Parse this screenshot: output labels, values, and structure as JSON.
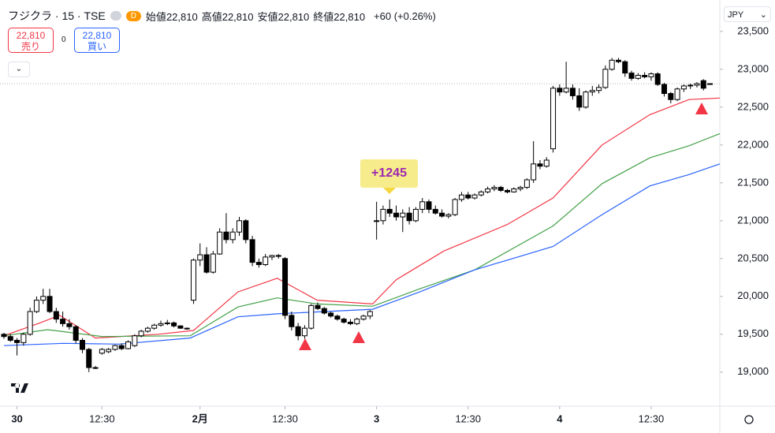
{
  "header": {
    "symbol": "フジクラ · 15 · TSE",
    "badge": "D",
    "ohlc_legend": [
      {
        "label": "始値",
        "value": "22,810"
      },
      {
        "label": "高値",
        "value": "22,810"
      },
      {
        "label": "安値",
        "value": "22,810"
      },
      {
        "label": "終値",
        "value": "22,810"
      }
    ],
    "change": "+60 (+0.26%)",
    "currency": "JPY"
  },
  "trade": {
    "sell": {
      "price": "22,810",
      "label": "売り"
    },
    "spread": "0",
    "buy": {
      "price": "22,810",
      "label": "買い"
    }
  },
  "chart_data": {
    "type": "candlestick",
    "annotation": "+1245",
    "price_line": 22810,
    "xlim": [
      -0.6,
      109.5
    ],
    "ylim": [
      18550,
      23915
    ],
    "xticks": [
      {
        "value": 2,
        "label": "30"
      },
      {
        "value": 15,
        "label": "12:30"
      },
      {
        "value": 30,
        "label": "2月"
      },
      {
        "value": 43,
        "label": "12:30"
      },
      {
        "value": 57,
        "label": "3"
      },
      {
        "value": 71,
        "label": "12:30"
      },
      {
        "value": 85,
        "label": "4"
      },
      {
        "value": 99,
        "label": "12:30"
      }
    ],
    "yticks": [
      {
        "value": 19000,
        "label": "19,000"
      },
      {
        "value": 19500,
        "label": "19,500"
      },
      {
        "value": 20000,
        "label": "20,000"
      },
      {
        "value": 20500,
        "label": "20,500"
      },
      {
        "value": 21000,
        "label": "21,000"
      },
      {
        "value": 21500,
        "label": "21,500"
      },
      {
        "value": 22000,
        "label": "22,000"
      },
      {
        "value": 22500,
        "label": "22,500"
      },
      {
        "value": 23000,
        "label": "23,000"
      },
      {
        "value": 23500,
        "label": "23,500"
      }
    ],
    "ohlc": [
      [
        19500,
        19520,
        19440,
        19470
      ],
      [
        19470,
        19500,
        19400,
        19420
      ],
      [
        19420,
        19450,
        19220,
        19390
      ],
      [
        19390,
        19520,
        19350,
        19500
      ],
      [
        19500,
        19850,
        19480,
        19800
      ],
      [
        19800,
        20000,
        19780,
        19950
      ],
      [
        19950,
        20100,
        19900,
        20000
      ],
      [
        20000,
        20100,
        19780,
        19800
      ],
      [
        19800,
        19850,
        19650,
        19700
      ],
      [
        19700,
        19800,
        19600,
        19640
      ],
      [
        19640,
        19700,
        19560,
        19600
      ],
      [
        19600,
        19620,
        19380,
        19420
      ],
      [
        19420,
        19450,
        19250,
        19300
      ],
      [
        19300,
        19320,
        19000,
        19060
      ],
      [
        19060,
        19080,
        19040,
        19060
      ],
      [
        19250,
        19320,
        19230,
        19300
      ],
      [
        19270,
        19320,
        19250,
        19300
      ],
      [
        19300,
        19360,
        19280,
        19350
      ],
      [
        19350,
        19380,
        19290,
        19310
      ],
      [
        19310,
        19420,
        19300,
        19400
      ],
      [
        19350,
        19500,
        19330,
        19480
      ],
      [
        19480,
        19560,
        19460,
        19540
      ],
      [
        19540,
        19600,
        19520,
        19580
      ],
      [
        19580,
        19640,
        19560,
        19620
      ],
      [
        19620,
        19680,
        19600,
        19640
      ],
      [
        19640,
        19690,
        19620,
        19650
      ],
      [
        19650,
        19670,
        19590,
        19610
      ],
      [
        19610,
        19620,
        19570,
        19580
      ],
      [
        19580,
        19590,
        19560,
        19570
      ],
      [
        19950,
        20500,
        19900,
        20480
      ],
      [
        20480,
        20700,
        20400,
        20550
      ],
      [
        20550,
        20650,
        20300,
        20320
      ],
      [
        20320,
        20600,
        20300,
        20560
      ],
      [
        20560,
        20900,
        20550,
        20850
      ],
      [
        20850,
        21100,
        20700,
        20750
      ],
      [
        20750,
        20900,
        20700,
        20850
      ],
      [
        20850,
        21050,
        20800,
        21000
      ],
      [
        21000,
        21020,
        20700,
        20750
      ],
      [
        20750,
        20800,
        20400,
        20450
      ],
      [
        20450,
        20500,
        20380,
        20420
      ],
      [
        20420,
        20560,
        20400,
        20520
      ],
      [
        20520,
        20550,
        20480,
        20540
      ],
      [
        20540,
        20560,
        20500,
        20530
      ],
      [
        20500,
        20520,
        19700,
        19750
      ],
      [
        19750,
        19800,
        19550,
        19600
      ],
      [
        19600,
        19650,
        19420,
        19480
      ],
      [
        19480,
        19620,
        19440,
        19580
      ],
      [
        19580,
        19900,
        19560,
        19880
      ],
      [
        19880,
        19920,
        19820,
        19840
      ],
      [
        19840,
        19860,
        19760,
        19780
      ],
      [
        19780,
        19800,
        19720,
        19740
      ],
      [
        19740,
        19760,
        19680,
        19700
      ],
      [
        19700,
        19720,
        19640,
        19660
      ],
      [
        19660,
        19700,
        19620,
        19640
      ],
      [
        19640,
        19720,
        19620,
        19700
      ],
      [
        19700,
        19760,
        19680,
        19740
      ],
      [
        19740,
        19820,
        19700,
        19800
      ],
      [
        21000,
        21250,
        20750,
        21000
      ],
      [
        21000,
        21200,
        20950,
        21150
      ],
      [
        21150,
        21280,
        21050,
        21100
      ],
      [
        21100,
        21200,
        21000,
        21050
      ],
      [
        21050,
        21150,
        20850,
        21100
      ],
      [
        21100,
        21180,
        20950,
        21000
      ],
      [
        21000,
        21180,
        20980,
        21150
      ],
      [
        21150,
        21300,
        21100,
        21250
      ],
      [
        21250,
        21280,
        21100,
        21150
      ],
      [
        21150,
        21200,
        21080,
        21100
      ],
      [
        21100,
        21150,
        21040,
        21060
      ],
      [
        21060,
        21100,
        21030,
        21080
      ],
      [
        21080,
        21300,
        21060,
        21280
      ],
      [
        21280,
        21380,
        21250,
        21340
      ],
      [
        21340,
        21380,
        21280,
        21300
      ],
      [
        21300,
        21360,
        21280,
        21340
      ],
      [
        21340,
        21400,
        21320,
        21380
      ],
      [
        21380,
        21450,
        21360,
        21420
      ],
      [
        21420,
        21470,
        21390,
        21440
      ],
      [
        21440,
        21460,
        21380,
        21400
      ],
      [
        21400,
        21420,
        21360,
        21380
      ],
      [
        21380,
        21440,
        21370,
        21420
      ],
      [
        21420,
        21460,
        21390,
        21440
      ],
      [
        21440,
        21560,
        21420,
        21540
      ],
      [
        21540,
        22050,
        21500,
        21750
      ],
      [
        21750,
        21800,
        21680,
        21720
      ],
      [
        21720,
        21840,
        21700,
        21800
      ],
      [
        21950,
        22780,
        21900,
        22750
      ],
      [
        22750,
        22800,
        22650,
        22700
      ],
      [
        22700,
        23100,
        22680,
        22750
      ],
      [
        22750,
        22800,
        22600,
        22650
      ],
      [
        22650,
        22750,
        22450,
        22500
      ],
      [
        22500,
        22720,
        22480,
        22700
      ],
      [
        22700,
        22780,
        22650,
        22720
      ],
      [
        22720,
        22800,
        22680,
        22760
      ],
      [
        22760,
        23050,
        22740,
        23000
      ],
      [
        23000,
        23150,
        22980,
        23120
      ],
      [
        23120,
        23150,
        23080,
        23100
      ],
      [
        23100,
        23120,
        22900,
        22950
      ],
      [
        22950,
        22980,
        22850,
        22880
      ],
      [
        22880,
        22950,
        22860,
        22920
      ],
      [
        22920,
        22960,
        22880,
        22900
      ],
      [
        22900,
        22960,
        22850,
        22940
      ],
      [
        22940,
        22960,
        22780,
        22800
      ],
      [
        22800,
        22820,
        22640,
        22680
      ],
      [
        22680,
        22700,
        22550,
        22600
      ],
      [
        22600,
        22760,
        22580,
        22740
      ],
      [
        22740,
        22800,
        22700,
        22780
      ],
      [
        22780,
        22810,
        22740,
        22790
      ],
      [
        22790,
        22830,
        22760,
        22810
      ],
      [
        22850,
        22870,
        22720,
        22750
      ],
      [
        22810,
        22810,
        22810,
        22810
      ]
    ],
    "moving_averages": [
      {
        "color": "#f23645",
        "x": [
          0,
          5.5,
          8.5,
          14,
          23.6,
          29,
          35.8,
          41.8,
          47.9,
          56.4,
          60,
          67.3,
          77,
          84,
          91.5,
          98.8,
          104.8,
          109.5
        ],
        "values": [
          19480,
          19650,
          19750,
          19450,
          19500,
          19550,
          20060,
          20240,
          19950,
          19900,
          20220,
          20600,
          20950,
          21300,
          22000,
          22400,
          22600,
          22620
        ]
      },
      {
        "color": "#43a047",
        "x": [
          0,
          6.7,
          15,
          28.5,
          35.8,
          41.8,
          47.9,
          56.4,
          63.6,
          72,
          84,
          91.5,
          98.8,
          104.8,
          109.5
        ],
        "values": [
          19480,
          19560,
          19470,
          19480,
          19860,
          19980,
          19900,
          19870,
          20100,
          20350,
          20930,
          21490,
          21830,
          21990,
          22150
        ]
      },
      {
        "color": "#2962ff",
        "x": [
          0,
          9.1,
          17.6,
          28.5,
          35.8,
          41.8,
          56.4,
          63.6,
          72,
          84,
          91.5,
          98.8,
          104.8,
          109.5
        ],
        "values": [
          19350,
          19380,
          19370,
          19450,
          19730,
          19770,
          19830,
          20060,
          20350,
          20660,
          21080,
          21460,
          21610,
          21750
        ]
      }
    ]
  }
}
